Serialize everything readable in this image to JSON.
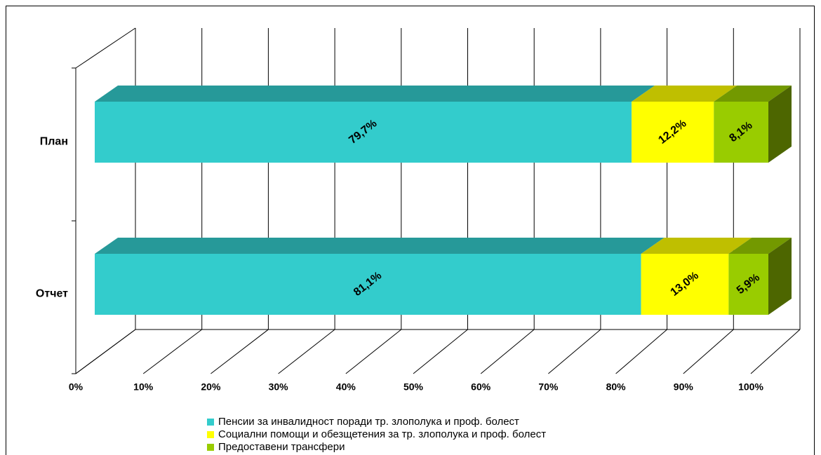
{
  "chart_data": {
    "type": "bar3d_stacked_horizontal",
    "categories": [
      "План",
      "Отчет"
    ],
    "series": [
      {
        "name": "Пенсии за инвалидност поради тр. злополука и проф. болест",
        "color": "#33CCCC",
        "top": "#269999",
        "values": [
          79.7,
          81.1
        ],
        "value_labels": [
          "79,7%",
          "81,1%"
        ]
      },
      {
        "name": "Социални помощи и обезщетения за тр. злополука и проф. болест",
        "color": "#FFFF00",
        "top": "#BFBF00",
        "values": [
          12.2,
          13.0
        ],
        "value_labels": [
          "12,2%",
          "13,0%"
        ]
      },
      {
        "name": "Предоставени трансфери",
        "color": "#99CC00",
        "top": "#739900",
        "side": "#4D6600",
        "values": [
          8.1,
          5.9
        ],
        "value_labels": [
          "8,1%",
          "5,9%"
        ]
      }
    ],
    "xlim": [
      0,
      100
    ],
    "xticks": [
      {
        "value": 0,
        "label": "0%"
      },
      {
        "value": 10,
        "label": "10%"
      },
      {
        "value": 20,
        "label": "20%"
      },
      {
        "value": 30,
        "label": "30%"
      },
      {
        "value": 40,
        "label": "40%"
      },
      {
        "value": 50,
        "label": "50%"
      },
      {
        "value": 60,
        "label": "60%"
      },
      {
        "value": 70,
        "label": "70%"
      },
      {
        "value": 80,
        "label": "80%"
      },
      {
        "value": 90,
        "label": "90%"
      },
      {
        "value": 100,
        "label": "100%"
      }
    ],
    "grid": true,
    "legend": "bottom"
  }
}
